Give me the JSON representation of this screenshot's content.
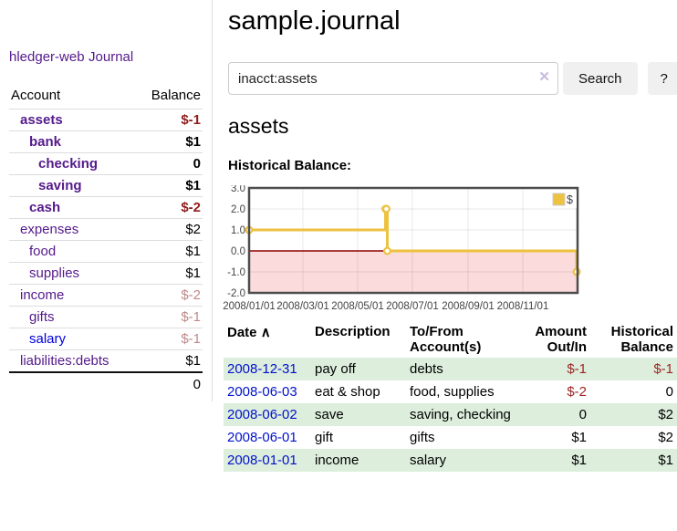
{
  "app": {
    "brand": "hledger-web",
    "nav_journal": "Journal"
  },
  "colors": {
    "link_purple": "#551a8b",
    "link_blue": "#0011cc",
    "negative_strong": "#8f1d1d",
    "negative_muted": "#bf8a8a",
    "row_stripe_green": "#ddeedd",
    "series_gold": "#edc240"
  },
  "sidebar": {
    "balance_table": {
      "headers": [
        "Account",
        "Balance"
      ],
      "rows": [
        {
          "label": "assets",
          "depth": 1,
          "bold": true,
          "balance": "$-1",
          "balance_tone": "strong"
        },
        {
          "label": "bank",
          "depth": 2,
          "bold": true,
          "balance": "$1"
        },
        {
          "label": "checking",
          "depth": 3,
          "bold": true,
          "balance": "0"
        },
        {
          "label": "saving",
          "depth": 3,
          "bold": true,
          "balance": "$1"
        },
        {
          "label": "cash",
          "depth": 2,
          "bold": true,
          "balance": "$-2",
          "balance_tone": "strong"
        },
        {
          "label": "expenses",
          "depth": 1,
          "bold": false,
          "balance": "$2"
        },
        {
          "label": "food",
          "depth": 2,
          "bold": false,
          "balance": "$1"
        },
        {
          "label": "supplies",
          "depth": 2,
          "bold": false,
          "balance": "$1"
        },
        {
          "label": "income",
          "depth": 1,
          "bold": false,
          "balance": "$-2",
          "balance_tone": "muted"
        },
        {
          "label": "gifts",
          "depth": 2,
          "bold": false,
          "balance": "$-1",
          "balance_tone": "muted"
        },
        {
          "label": "salary",
          "depth": 2,
          "bold": false,
          "balance": "$-1",
          "balance_tone": "muted",
          "link_color": "blue"
        },
        {
          "label": "liabilities:debts",
          "depth": 1,
          "bold": false,
          "balance": "$1"
        }
      ],
      "total": "0"
    }
  },
  "main": {
    "title": "sample.journal",
    "search": {
      "value": "inacct:assets",
      "placeholder": "",
      "clear_icon": "✕",
      "search_label": "Search",
      "help_label": "?"
    },
    "account_heading": "assets",
    "chart_label": "Historical Balance:"
  },
  "chart_data": {
    "type": "line",
    "title": "Historical Balance:",
    "steps": true,
    "series": [
      {
        "name": "$",
        "color": "#edc240",
        "points": [
          [
            "2008-01-01",
            1.0
          ],
          [
            "2008-06-01",
            2.0
          ],
          [
            "2008-06-02",
            2.0
          ],
          [
            "2008-06-03",
            0.0
          ],
          [
            "2008-12-31",
            -1.0
          ]
        ]
      }
    ],
    "x_range": [
      "2008-01-01",
      "2009-01-01"
    ],
    "ylim": [
      -2.0,
      3.0
    ],
    "y_ticks": [
      "3.0",
      "2.0",
      "1.0",
      "0.0",
      "-1.0",
      "-2.0"
    ],
    "x_ticks": [
      "2008/01/01",
      "2008/03/01",
      "2008/05/01",
      "2008/07/01",
      "2008/09/01",
      "2008/11/01"
    ],
    "negative_region_color": "#fbdbdb",
    "zero_line_color": "#8b0000",
    "grid": true,
    "legend": {
      "label": "$",
      "position": "top-right"
    }
  },
  "register": {
    "headers": [
      "Date",
      "Description",
      "To/From Account(s)",
      "Amount Out/In",
      "Historical Balance"
    ],
    "sort_icon": "∧",
    "rows": [
      {
        "date": "2008-12-31",
        "description": "pay off",
        "accounts": "debts",
        "amount": "$-1",
        "balance": "$-1"
      },
      {
        "date": "2008-06-03",
        "description": "eat & shop",
        "accounts": "food, supplies",
        "amount": "$-2",
        "balance": "0"
      },
      {
        "date": "2008-06-02",
        "description": "save",
        "accounts": "saving, checking",
        "amount": "0",
        "balance": "$2"
      },
      {
        "date": "2008-06-01",
        "description": "gift",
        "accounts": "gifts",
        "amount": "$1",
        "balance": "$2"
      },
      {
        "date": "2008-01-01",
        "description": "income",
        "accounts": "salary",
        "amount": "$1",
        "balance": "$1"
      }
    ]
  }
}
